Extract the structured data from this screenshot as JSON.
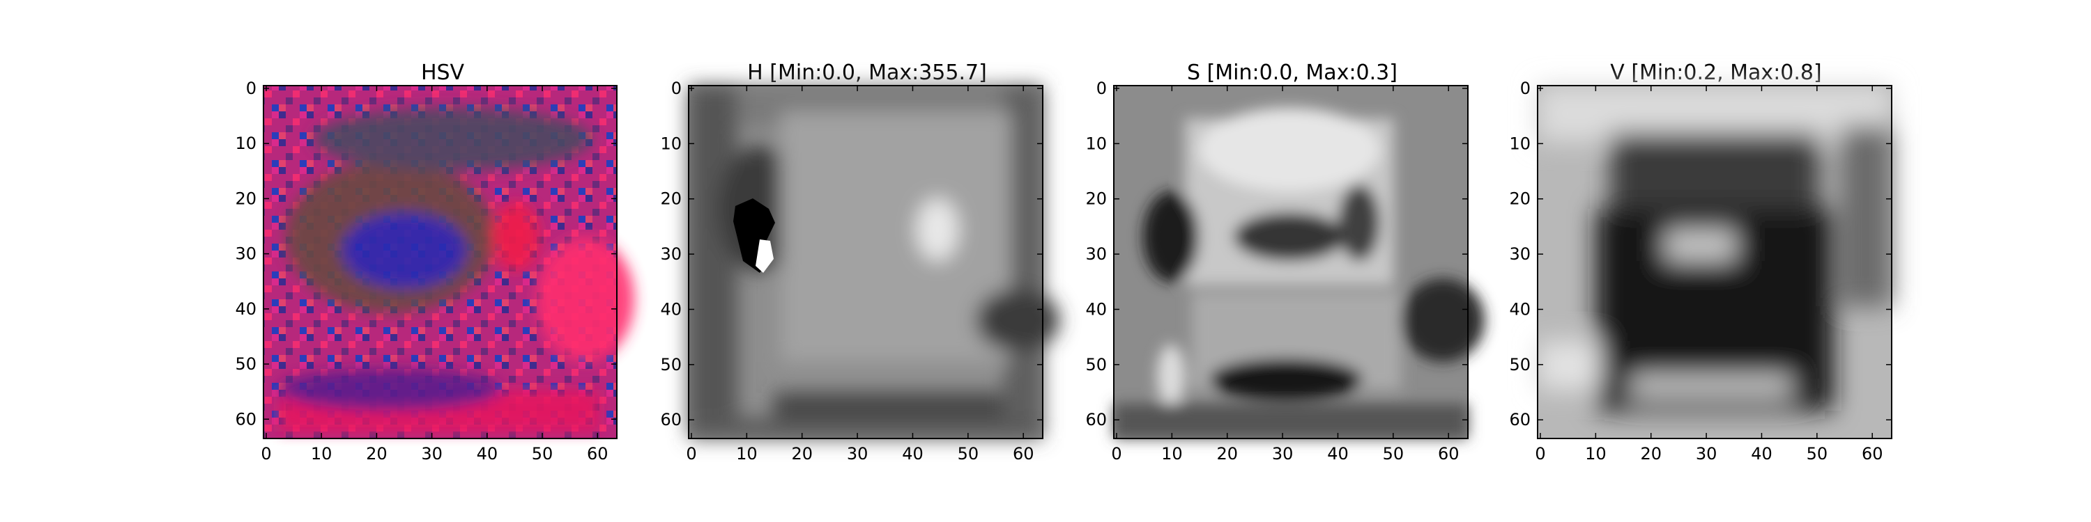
{
  "chart_data": [
    {
      "type": "heatmap",
      "title": "HSV",
      "xticks": [
        "0",
        "10",
        "20",
        "30",
        "40",
        "50",
        "60"
      ],
      "yticks": [
        "0",
        "10",
        "20",
        "30",
        "40",
        "50",
        "60"
      ],
      "xlim": [
        0,
        63
      ],
      "ylim": [
        63,
        0
      ],
      "color_mode": "rgb"
    },
    {
      "type": "heatmap",
      "title": "H [Min:0.0, Max:355.7]",
      "xticks": [
        "0",
        "10",
        "20",
        "30",
        "40",
        "50",
        "60"
      ],
      "yticks": [
        "0",
        "10",
        "20",
        "30",
        "40",
        "50",
        "60"
      ],
      "xlim": [
        0,
        63
      ],
      "ylim": [
        63,
        0
      ],
      "color_mode": "grayscale",
      "min": 0.0,
      "max": 355.7
    },
    {
      "type": "heatmap",
      "title": "S [Min:0.0, Max:0.3]",
      "xticks": [
        "0",
        "10",
        "20",
        "30",
        "40",
        "50",
        "60"
      ],
      "yticks": [
        "0",
        "10",
        "20",
        "30",
        "40",
        "50",
        "60"
      ],
      "xlim": [
        0,
        63
      ],
      "ylim": [
        63,
        0
      ],
      "color_mode": "grayscale",
      "min": 0.0,
      "max": 0.3
    },
    {
      "type": "heatmap",
      "title": "V [Min:0.2, Max:0.8]",
      "xticks": [
        "0",
        "10",
        "20",
        "30",
        "40",
        "50",
        "60"
      ],
      "yticks": [
        "0",
        "10",
        "20",
        "30",
        "40",
        "50",
        "60"
      ],
      "xlim": [
        0,
        63
      ],
      "ylim": [
        63,
        0
      ],
      "color_mode": "grayscale",
      "min": 0.2,
      "max": 0.8
    }
  ]
}
